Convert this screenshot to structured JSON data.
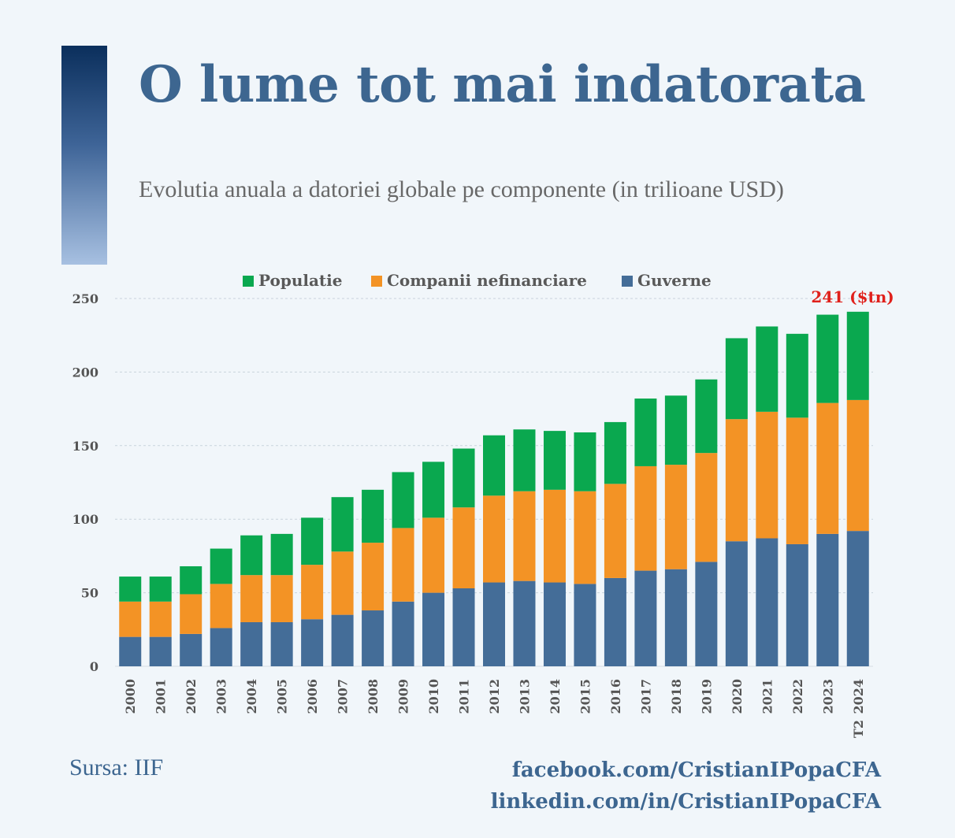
{
  "header": {
    "title": "O lume tot mai indatorata",
    "subtitle": "Evolutia anuala a datoriei globale pe componente (in trilioane USD)"
  },
  "footer": {
    "source": "Sursa: IIF",
    "link_facebook": "facebook.com/CristianIPopaCFA",
    "link_linkedin": "linkedin.com/in/CristianIPopaCFA"
  },
  "colors": {
    "populatie": "#0aa84f",
    "companii": "#f39325",
    "guverne": "#446d98",
    "annotation": "#e0201b",
    "axis_text": "#555555",
    "grid": "#c9d3dc"
  },
  "chart_data": {
    "type": "bar",
    "stacked": true,
    "categories": [
      "2000",
      "2001",
      "2002",
      "2003",
      "2004",
      "2005",
      "2006",
      "2007",
      "2008",
      "2009",
      "2010",
      "2011",
      "2012",
      "2013",
      "2014",
      "2015",
      "2016",
      "2017",
      "2018",
      "2019",
      "2020",
      "2021",
      "2022",
      "2023",
      "T2 2024"
    ],
    "series": [
      {
        "name": "Guverne",
        "color_key": "guverne",
        "values": [
          20,
          20,
          22,
          26,
          30,
          30,
          32,
          35,
          38,
          44,
          50,
          53,
          57,
          58,
          57,
          56,
          60,
          65,
          66,
          71,
          85,
          87,
          83,
          90,
          92
        ]
      },
      {
        "name": "Companii nefinanciare",
        "color_key": "companii",
        "values": [
          24,
          24,
          27,
          30,
          32,
          32,
          37,
          43,
          46,
          50,
          51,
          55,
          59,
          61,
          63,
          63,
          64,
          71,
          71,
          74,
          83,
          86,
          86,
          89,
          89
        ]
      },
      {
        "name": "Populatie",
        "color_key": "populatie",
        "values": [
          17,
          17,
          19,
          24,
          27,
          28,
          32,
          37,
          36,
          38,
          38,
          40,
          41,
          42,
          40,
          40,
          42,
          46,
          47,
          50,
          55,
          58,
          57,
          60,
          60
        ]
      }
    ],
    "legend_order": [
      "Populatie",
      "Companii nefinanciare",
      "Guverne"
    ],
    "legend_position": "top-center",
    "ylim": [
      0,
      250
    ],
    "yticks": [
      0,
      50,
      100,
      150,
      200,
      250
    ],
    "grid": true,
    "annotation": {
      "category": "T2 2024",
      "text": "241 ($tn)"
    }
  }
}
